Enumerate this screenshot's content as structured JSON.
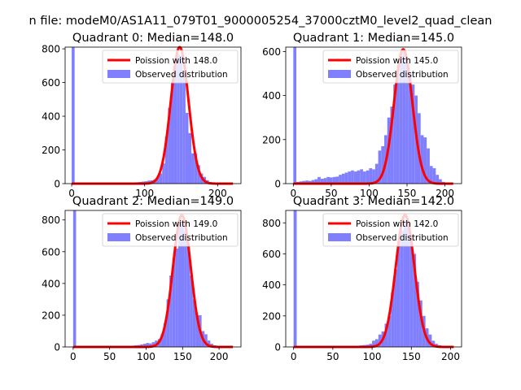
{
  "figure_title": "n file: modeM0/AS1A11_079T01_9000005254_37000cztM0_level2_quad_clean",
  "colors": {
    "hist": "#8080ff",
    "poisson": "#ff0000",
    "axis": "#000000"
  },
  "chart_data": [
    {
      "type": "bar",
      "title": "Quadrant 0: Median=148.0",
      "xlim": [
        -9,
        232
      ],
      "ylim": [
        0,
        810
      ],
      "xticks": [
        0,
        100,
        200
      ],
      "yticks": [
        0,
        200,
        400,
        600,
        800
      ],
      "legend": {
        "placement": "top-right",
        "entries": [
          "Poission with 148.0",
          "Observed distribution"
        ]
      },
      "median": 148.0,
      "bin_width": 4,
      "bins": [
        {
          "x": 0,
          "y": 810
        },
        {
          "x": 56,
          "y": 3
        },
        {
          "x": 60,
          "y": 3
        },
        {
          "x": 64,
          "y": 4
        },
        {
          "x": 68,
          "y": 4
        },
        {
          "x": 72,
          "y": 5
        },
        {
          "x": 76,
          "y": 6
        },
        {
          "x": 80,
          "y": 6
        },
        {
          "x": 84,
          "y": 7
        },
        {
          "x": 88,
          "y": 8
        },
        {
          "x": 92,
          "y": 10
        },
        {
          "x": 96,
          "y": 12
        },
        {
          "x": 100,
          "y": 14
        },
        {
          "x": 104,
          "y": 18
        },
        {
          "x": 108,
          "y": 20
        },
        {
          "x": 112,
          "y": 25
        },
        {
          "x": 116,
          "y": 40
        },
        {
          "x": 120,
          "y": 60
        },
        {
          "x": 124,
          "y": 120
        },
        {
          "x": 128,
          "y": 280
        },
        {
          "x": 132,
          "y": 450
        },
        {
          "x": 136,
          "y": 600
        },
        {
          "x": 140,
          "y": 730
        },
        {
          "x": 144,
          "y": 770
        },
        {
          "x": 148,
          "y": 760
        },
        {
          "x": 152,
          "y": 650
        },
        {
          "x": 156,
          "y": 420
        },
        {
          "x": 160,
          "y": 300
        },
        {
          "x": 164,
          "y": 180
        },
        {
          "x": 168,
          "y": 180
        },
        {
          "x": 172,
          "y": 110
        },
        {
          "x": 176,
          "y": 60
        },
        {
          "x": 180,
          "y": 40
        },
        {
          "x": 184,
          "y": 20
        },
        {
          "x": 188,
          "y": 10
        },
        {
          "x": 192,
          "y": 6
        },
        {
          "x": 196,
          "y": 4
        },
        {
          "x": 200,
          "y": 2
        }
      ],
      "poisson_curve": {
        "mean": 148.0,
        "x_range": [
          0,
          221
        ],
        "peak": 810
      }
    },
    {
      "type": "bar",
      "title": "Quadrant 1: Median=145.0",
      "xlim": [
        -10,
        222
      ],
      "ylim": [
        0,
        620
      ],
      "xticks": [
        0,
        50,
        100,
        150,
        200
      ],
      "yticks": [
        0,
        200,
        400,
        600
      ],
      "legend": {
        "placement": "top-right",
        "entries": [
          "Poission with 145.0",
          "Observed distribution"
        ]
      },
      "median": 145.0,
      "bin_width": 4,
      "bins": [
        {
          "x": 0,
          "y": 620
        },
        {
          "x": 4,
          "y": 8
        },
        {
          "x": 8,
          "y": 10
        },
        {
          "x": 12,
          "y": 12
        },
        {
          "x": 16,
          "y": 14
        },
        {
          "x": 20,
          "y": 12
        },
        {
          "x": 24,
          "y": 16
        },
        {
          "x": 28,
          "y": 20
        },
        {
          "x": 32,
          "y": 30
        },
        {
          "x": 36,
          "y": 22
        },
        {
          "x": 40,
          "y": 25
        },
        {
          "x": 44,
          "y": 30
        },
        {
          "x": 48,
          "y": 28
        },
        {
          "x": 52,
          "y": 30
        },
        {
          "x": 56,
          "y": 32
        },
        {
          "x": 60,
          "y": 40
        },
        {
          "x": 64,
          "y": 45
        },
        {
          "x": 68,
          "y": 50
        },
        {
          "x": 72,
          "y": 55
        },
        {
          "x": 76,
          "y": 60
        },
        {
          "x": 80,
          "y": 55
        },
        {
          "x": 84,
          "y": 60
        },
        {
          "x": 88,
          "y": 65
        },
        {
          "x": 92,
          "y": 55
        },
        {
          "x": 96,
          "y": 60
        },
        {
          "x": 100,
          "y": 70
        },
        {
          "x": 104,
          "y": 65
        },
        {
          "x": 108,
          "y": 90
        },
        {
          "x": 112,
          "y": 150
        },
        {
          "x": 116,
          "y": 170
        },
        {
          "x": 120,
          "y": 220
        },
        {
          "x": 124,
          "y": 300
        },
        {
          "x": 128,
          "y": 350
        },
        {
          "x": 132,
          "y": 450
        },
        {
          "x": 136,
          "y": 500
        },
        {
          "x": 140,
          "y": 580
        },
        {
          "x": 144,
          "y": 600
        },
        {
          "x": 148,
          "y": 560
        },
        {
          "x": 152,
          "y": 500
        },
        {
          "x": 156,
          "y": 450
        },
        {
          "x": 160,
          "y": 400
        },
        {
          "x": 164,
          "y": 320
        },
        {
          "x": 168,
          "y": 220
        },
        {
          "x": 172,
          "y": 210
        },
        {
          "x": 176,
          "y": 160
        },
        {
          "x": 180,
          "y": 80
        },
        {
          "x": 184,
          "y": 70
        },
        {
          "x": 188,
          "y": 40
        },
        {
          "x": 192,
          "y": 20
        },
        {
          "x": 196,
          "y": 8
        },
        {
          "x": 200,
          "y": 3
        }
      ],
      "poisson_curve": {
        "mean": 145.0,
        "x_range": [
          0,
          211
        ],
        "peak": 610
      }
    },
    {
      "type": "bar",
      "title": "Quadrant 2: Median=149.0",
      "xlim": [
        -11,
        230
      ],
      "ylim": [
        0,
        860
      ],
      "xticks": [
        0,
        50,
        100,
        150,
        200
      ],
      "yticks": [
        0,
        200,
        400,
        600,
        800
      ],
      "legend": {
        "placement": "top-right",
        "entries": [
          "Poission with 149.0",
          "Observed distribution"
        ]
      },
      "median": 149.0,
      "bin_width": 4,
      "bins": [
        {
          "x": 0,
          "y": 860
        },
        {
          "x": 60,
          "y": 3
        },
        {
          "x": 64,
          "y": 4
        },
        {
          "x": 68,
          "y": 5
        },
        {
          "x": 72,
          "y": 5
        },
        {
          "x": 76,
          "y": 6
        },
        {
          "x": 80,
          "y": 8
        },
        {
          "x": 84,
          "y": 10
        },
        {
          "x": 88,
          "y": 12
        },
        {
          "x": 92,
          "y": 16
        },
        {
          "x": 96,
          "y": 20
        },
        {
          "x": 100,
          "y": 25
        },
        {
          "x": 104,
          "y": 22
        },
        {
          "x": 108,
          "y": 30
        },
        {
          "x": 112,
          "y": 40
        },
        {
          "x": 116,
          "y": 50
        },
        {
          "x": 120,
          "y": 80
        },
        {
          "x": 124,
          "y": 150
        },
        {
          "x": 128,
          "y": 300
        },
        {
          "x": 132,
          "y": 450
        },
        {
          "x": 136,
          "y": 560
        },
        {
          "x": 140,
          "y": 620
        },
        {
          "x": 144,
          "y": 800
        },
        {
          "x": 148,
          "y": 800
        },
        {
          "x": 152,
          "y": 730
        },
        {
          "x": 156,
          "y": 650
        },
        {
          "x": 160,
          "y": 450
        },
        {
          "x": 164,
          "y": 300
        },
        {
          "x": 168,
          "y": 200
        },
        {
          "x": 172,
          "y": 200
        },
        {
          "x": 176,
          "y": 100
        },
        {
          "x": 180,
          "y": 80
        },
        {
          "x": 184,
          "y": 40
        },
        {
          "x": 188,
          "y": 20
        },
        {
          "x": 192,
          "y": 10
        },
        {
          "x": 196,
          "y": 5
        },
        {
          "x": 200,
          "y": 2
        }
      ],
      "poisson_curve": {
        "mean": 149.0,
        "x_range": [
          0,
          219
        ],
        "peak": 830
      }
    },
    {
      "type": "bar",
      "title": "Quadrant 3: Median=142.0",
      "xlim": [
        -10,
        214
      ],
      "ylim": [
        0,
        880
      ],
      "xticks": [
        0,
        50,
        100,
        150,
        200
      ],
      "yticks": [
        0,
        200,
        400,
        600,
        800
      ],
      "legend": {
        "placement": "top-right",
        "entries": [
          "Poission with 142.0",
          "Observed distribution"
        ]
      },
      "median": 142.0,
      "bin_width": 4,
      "bins": [
        {
          "x": 0,
          "y": 880
        },
        {
          "x": 56,
          "y": 3
        },
        {
          "x": 60,
          "y": 3
        },
        {
          "x": 64,
          "y": 4
        },
        {
          "x": 68,
          "y": 5
        },
        {
          "x": 72,
          "y": 6
        },
        {
          "x": 76,
          "y": 7
        },
        {
          "x": 80,
          "y": 8
        },
        {
          "x": 84,
          "y": 10
        },
        {
          "x": 88,
          "y": 12
        },
        {
          "x": 92,
          "y": 14
        },
        {
          "x": 96,
          "y": 20
        },
        {
          "x": 100,
          "y": 40
        },
        {
          "x": 104,
          "y": 50
        },
        {
          "x": 108,
          "y": 80
        },
        {
          "x": 112,
          "y": 100
        },
        {
          "x": 116,
          "y": 150
        },
        {
          "x": 120,
          "y": 200
        },
        {
          "x": 124,
          "y": 350
        },
        {
          "x": 128,
          "y": 500
        },
        {
          "x": 132,
          "y": 680
        },
        {
          "x": 136,
          "y": 750
        },
        {
          "x": 140,
          "y": 820
        },
        {
          "x": 144,
          "y": 790
        },
        {
          "x": 148,
          "y": 720
        },
        {
          "x": 152,
          "y": 600
        },
        {
          "x": 156,
          "y": 420
        },
        {
          "x": 160,
          "y": 300
        },
        {
          "x": 164,
          "y": 200
        },
        {
          "x": 168,
          "y": 120
        },
        {
          "x": 172,
          "y": 80
        },
        {
          "x": 176,
          "y": 40
        },
        {
          "x": 180,
          "y": 20
        },
        {
          "x": 184,
          "y": 10
        },
        {
          "x": 188,
          "y": 4
        }
      ],
      "poisson_curve": {
        "mean": 142.0,
        "x_range": [
          0,
          204
        ],
        "peak": 850
      }
    }
  ]
}
